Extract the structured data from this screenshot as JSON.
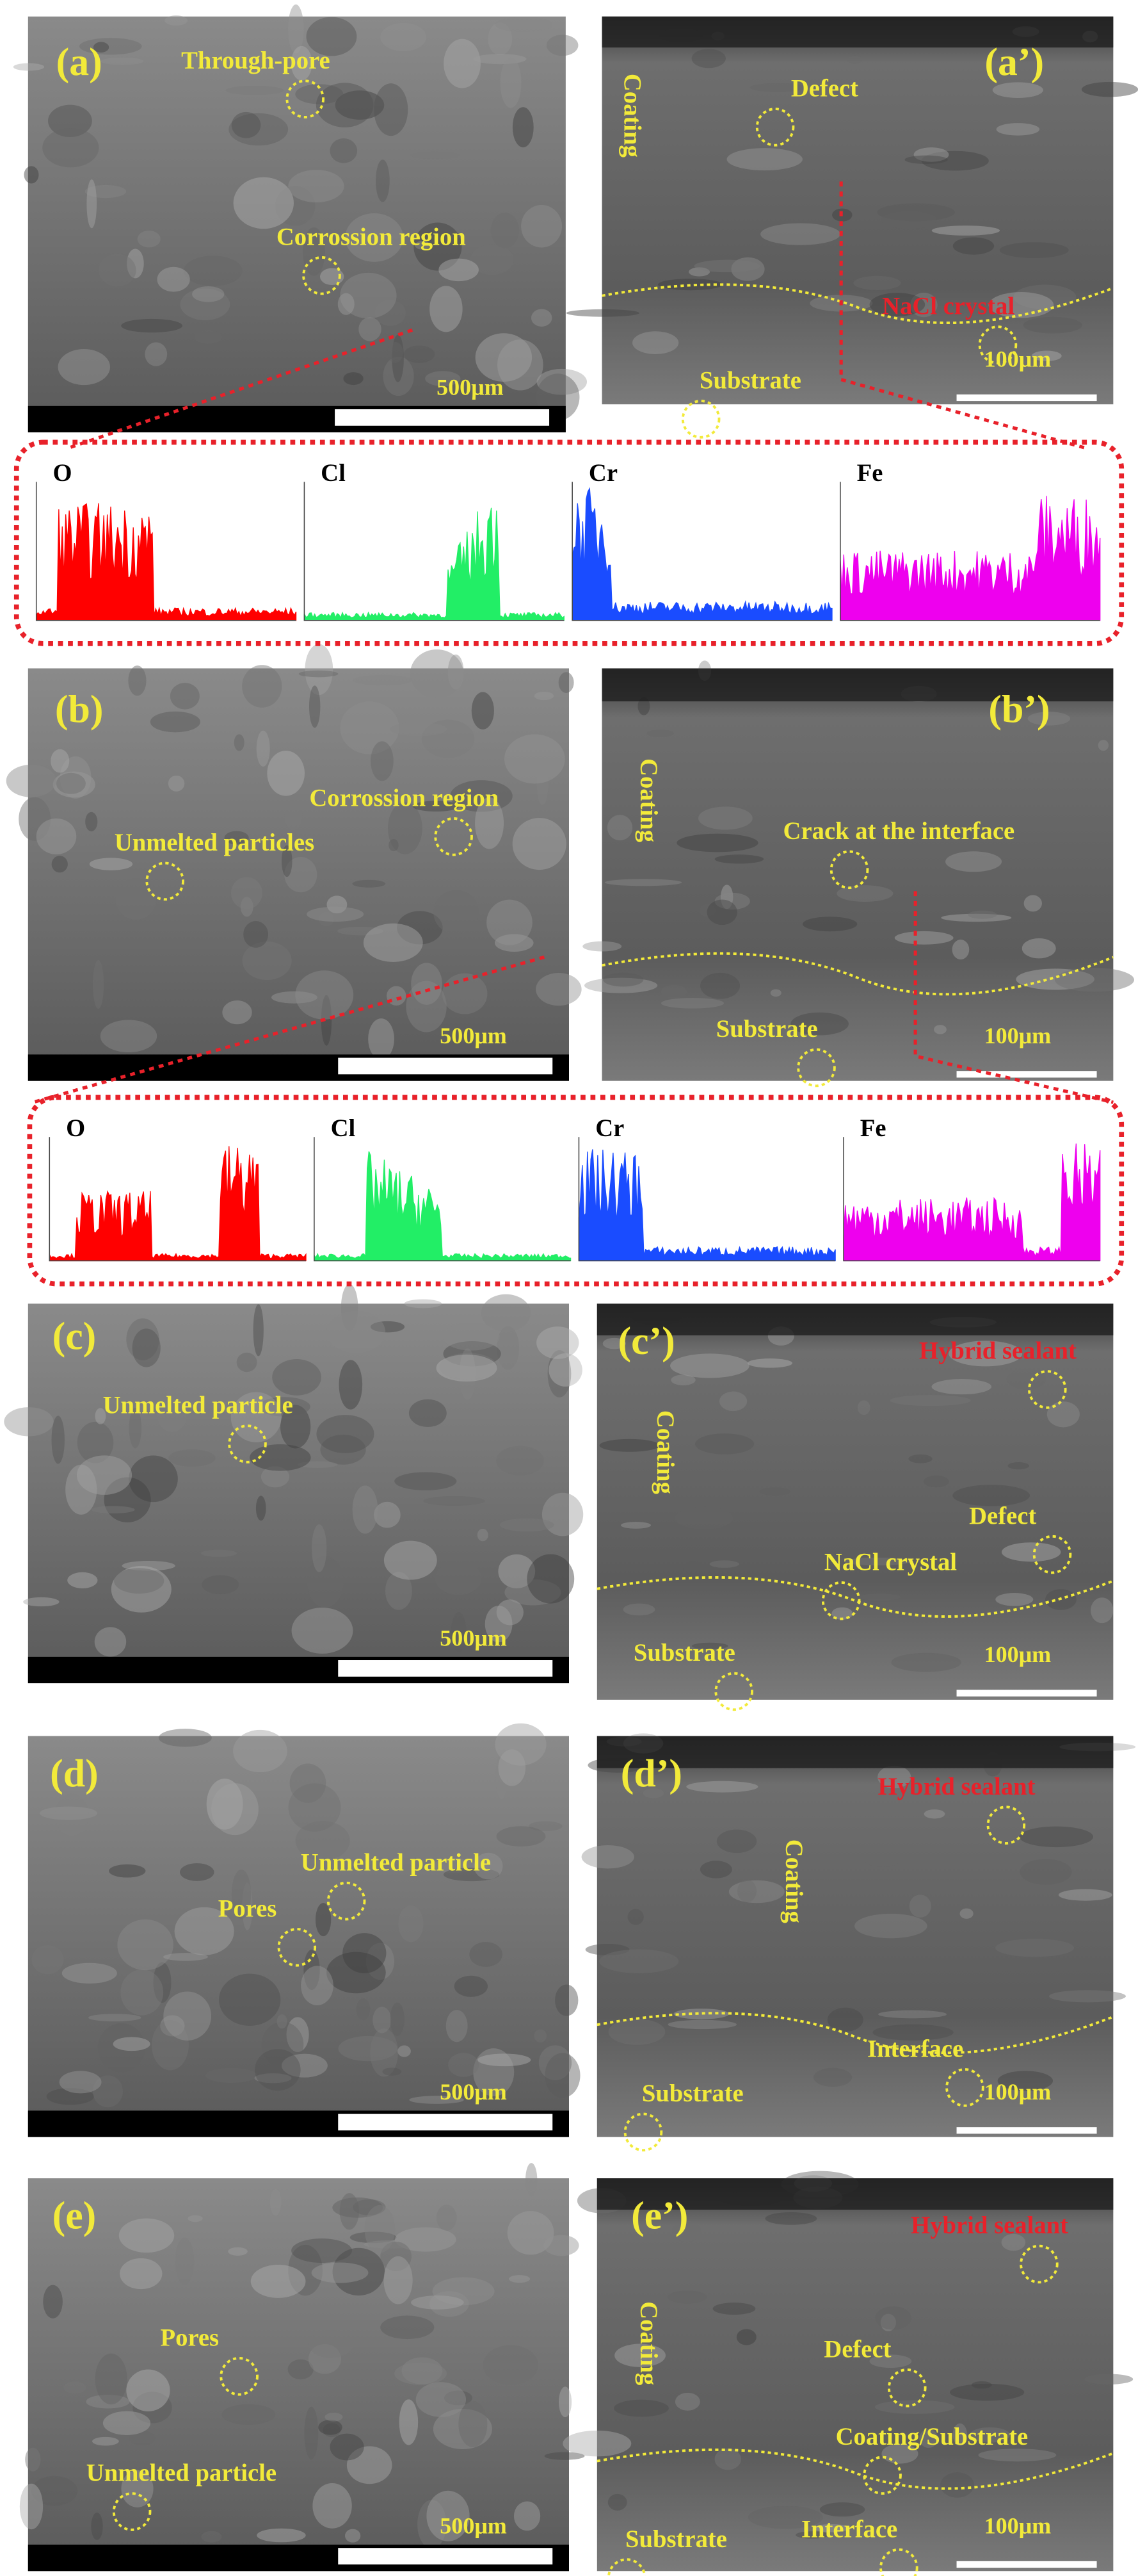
{
  "panels": [
    {
      "label": "(a)",
      "annotations": [
        "Through-pore",
        "Corrossion region"
      ],
      "scale_bar": "500μm"
    },
    {
      "label": "(a’)",
      "annotations": [
        "Coating",
        "Defect",
        "NaCl crystal",
        "Substrate"
      ],
      "scale_bar": "100μm"
    },
    {
      "label": "(b)",
      "annotations": [
        "Corrossion region",
        "Unmelted particles"
      ],
      "scale_bar": "500μm"
    },
    {
      "label": "(b’)",
      "annotations": [
        "Coating",
        "Crack at the interface",
        "Substrate"
      ],
      "scale_bar": "100μm"
    },
    {
      "label": "(c)",
      "annotations": [
        "Unmelted particle"
      ],
      "scale_bar": "500μm"
    },
    {
      "label": "(c’)",
      "annotations": [
        "Hybrid sealant",
        "Coating",
        "Defect",
        "NaCl crystal",
        "Substrate"
      ],
      "scale_bar": "100μm"
    },
    {
      "label": "(d)",
      "annotations": [
        "Pores",
        "Unmelted particle"
      ],
      "scale_bar": "500μm"
    },
    {
      "label": "(d’)",
      "annotations": [
        "Hybrid sealant",
        "Coating",
        "Interface",
        "Substrate"
      ],
      "scale_bar": "100μm"
    },
    {
      "label": "(e)",
      "annotations": [
        "Pores",
        "Unmelted particle"
      ],
      "scale_bar": "500μm"
    },
    {
      "label": "(e’)",
      "annotations": [
        "Hybrid sealant",
        "Coating",
        "Defect",
        "Coating/Substrate",
        "Interface",
        "Substrate"
      ],
      "scale_bar": "100μm"
    }
  ],
  "eds": [
    {
      "elements": [
        "O",
        "Cl",
        "Cr",
        "Fe"
      ]
    },
    {
      "elements": [
        "O",
        "Cl",
        "Cr",
        "Fe"
      ]
    }
  ]
}
